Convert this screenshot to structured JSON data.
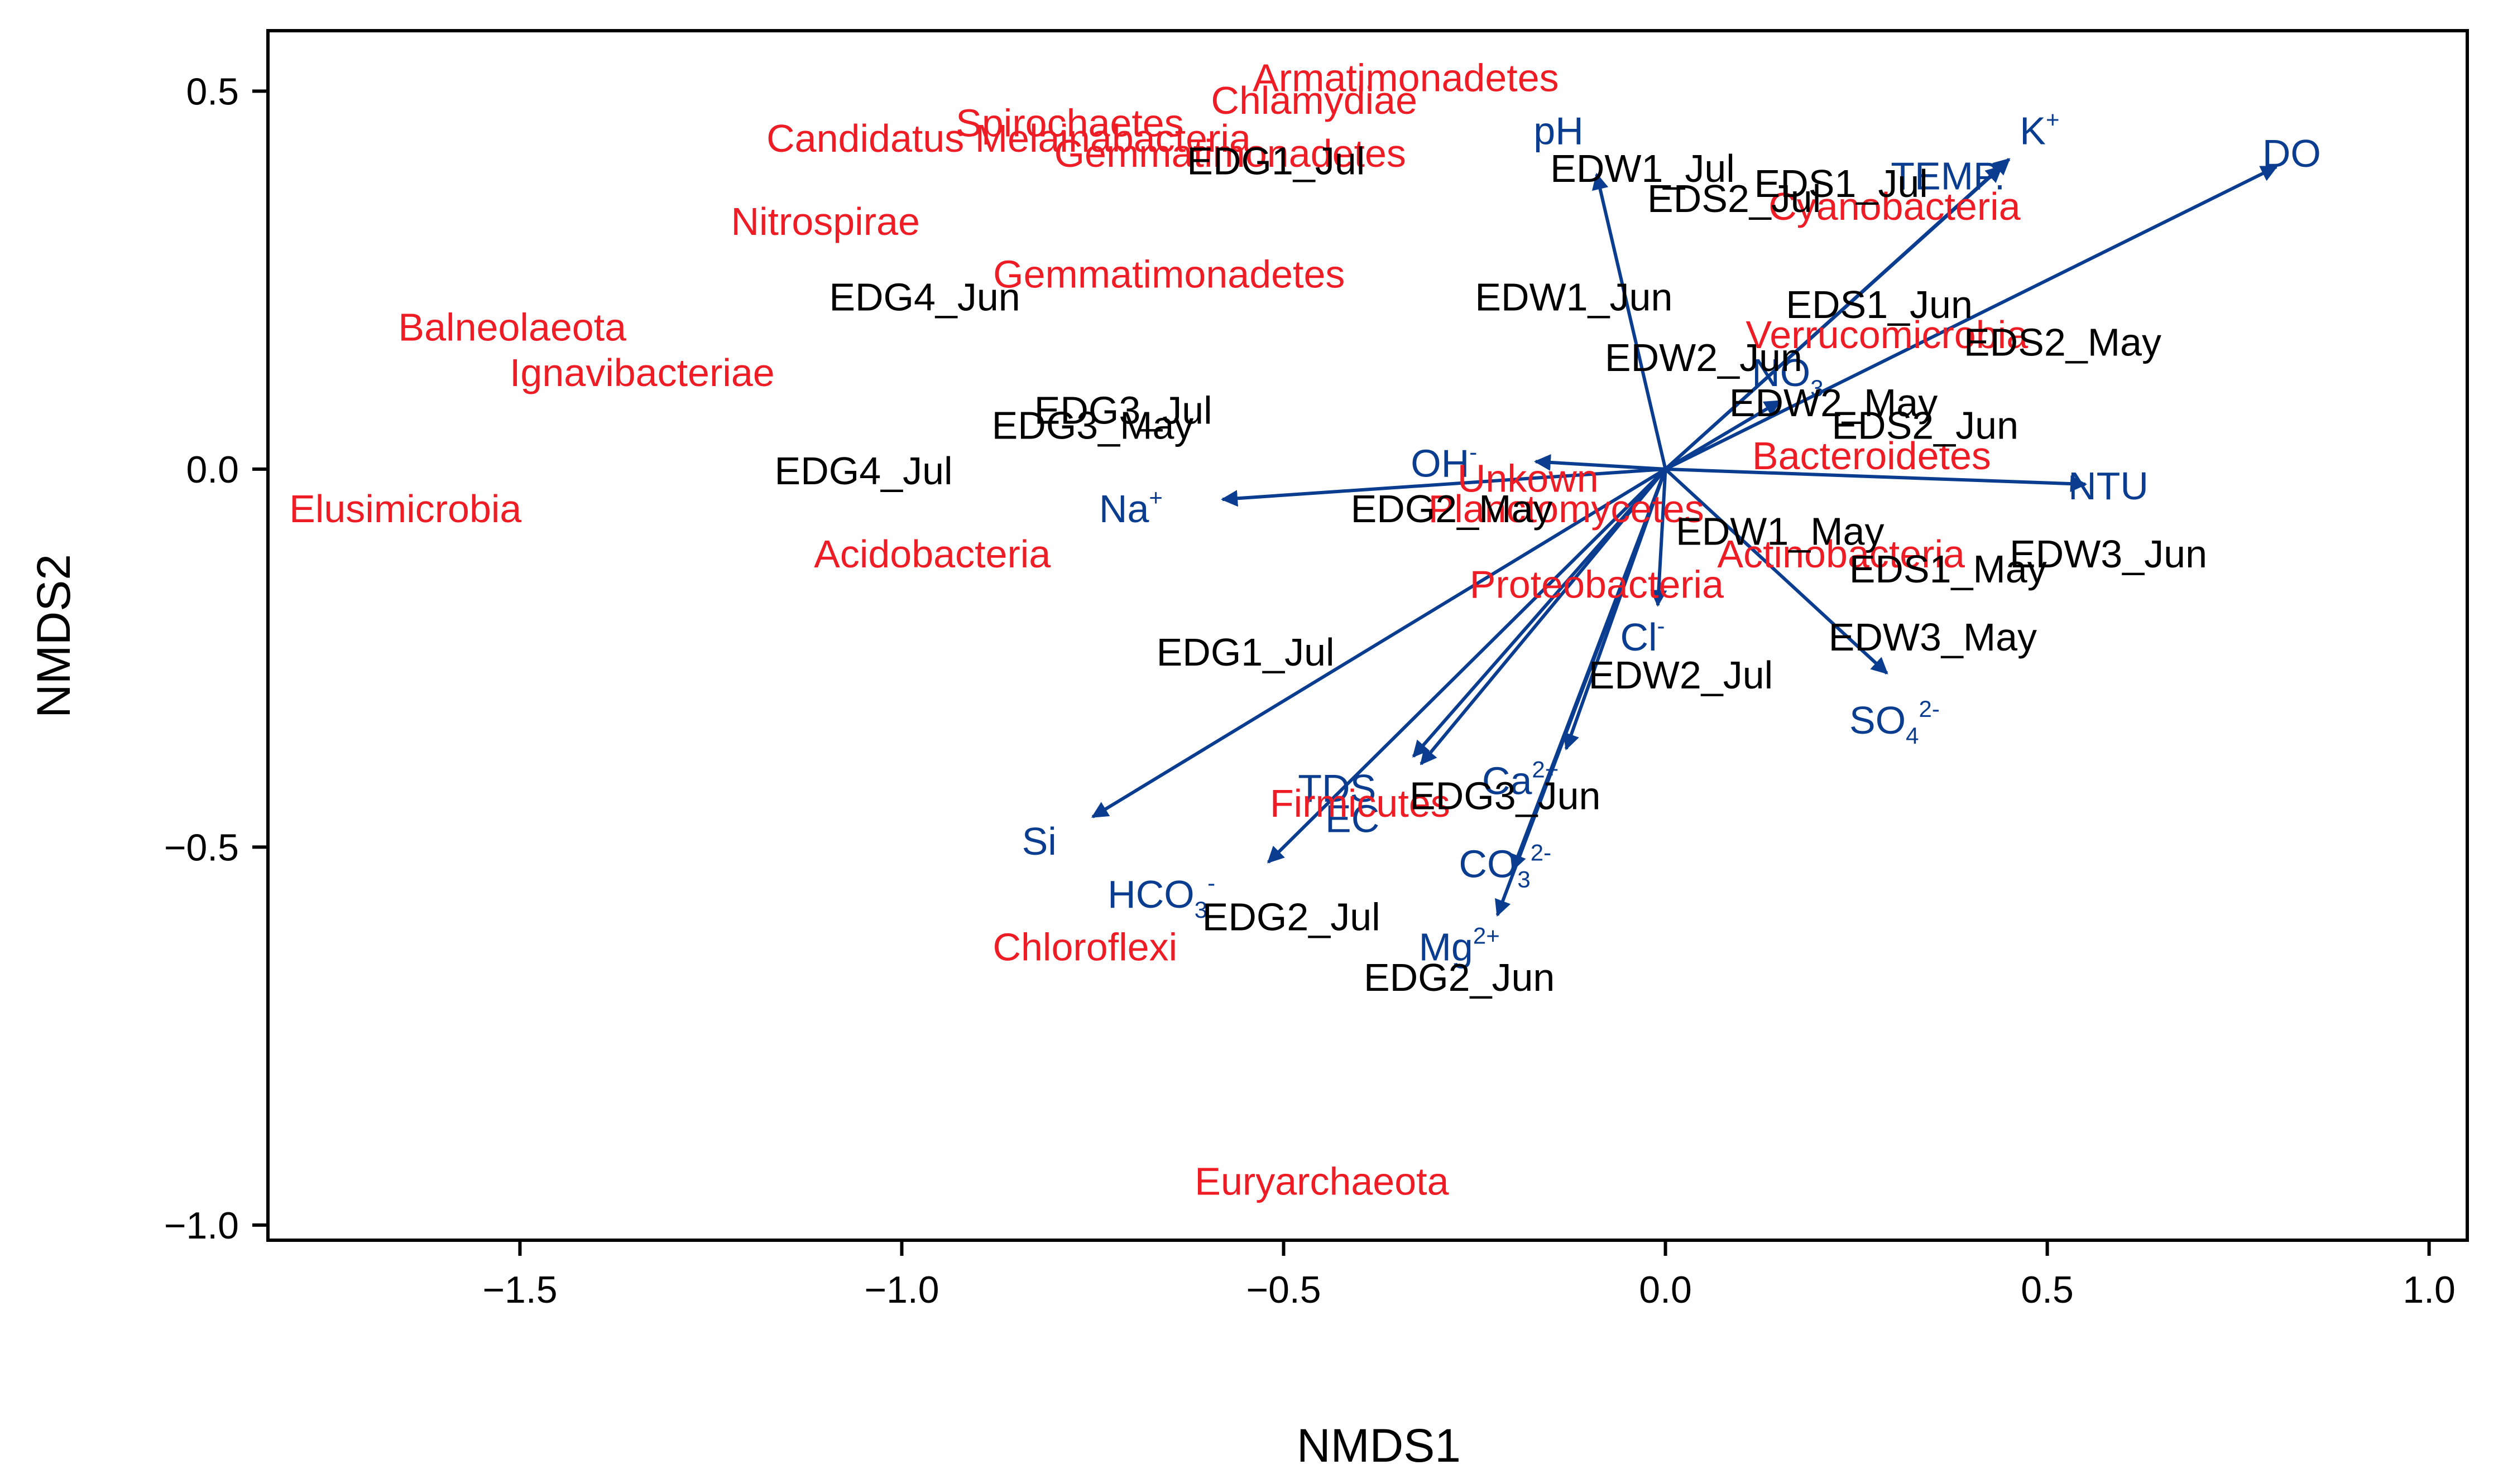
{
  "chart_data": {
    "type": "scatter",
    "title": "",
    "xlabel": "NMDS1",
    "ylabel": "NMDS2",
    "xlim": [
      -1.83,
      1.05
    ],
    "ylim": [
      -1.02,
      0.58
    ],
    "xticks": [
      -1.5,
      -1.0,
      -0.5,
      0.0,
      0.5,
      1.0
    ],
    "xtick_labels": [
      "−1.5",
      "−1.0",
      "−0.5",
      "0.0",
      "0.5",
      "1.0"
    ],
    "yticks": [
      -1.0,
      -0.5,
      0.0,
      0.5
    ],
    "ytick_labels": [
      "−1.0",
      "−0.5",
      "0.0",
      "0.5"
    ],
    "colors": {
      "sites": "#000000",
      "taxa": "#ee1c25",
      "vectors": "#0a3d8f"
    },
    "sites": [
      {
        "label": "EDG1_Jul",
        "x": -0.51,
        "y": 0.39
      },
      {
        "label": "EDW1_Jul",
        "x": -0.03,
        "y": 0.38
      },
      {
        "label": "EDS1_Jul",
        "x": 0.23,
        "y": 0.36
      },
      {
        "label": "EDS2_Jul",
        "x": 0.09,
        "y": 0.34
      },
      {
        "label": "EDG4_Jun",
        "x": -0.97,
        "y": 0.21
      },
      {
        "label": "EDW1_Jun",
        "x": -0.12,
        "y": 0.21
      },
      {
        "label": "EDS1_Jun",
        "x": 0.28,
        "y": 0.2
      },
      {
        "label": "EDS2_May",
        "x": 0.52,
        "y": 0.15
      },
      {
        "label": "EDW2_Jun",
        "x": 0.05,
        "y": 0.13
      },
      {
        "label": "EDW2_May",
        "x": 0.22,
        "y": 0.07
      },
      {
        "label": "EDG3_Jul",
        "x": -0.71,
        "y": 0.06
      },
      {
        "label": "EDG3_May",
        "x": -0.75,
        "y": 0.04
      },
      {
        "label": "EDS2_Jun",
        "x": 0.34,
        "y": 0.04
      },
      {
        "label": "EDG4_Jul",
        "x": -1.05,
        "y": -0.02
      },
      {
        "label": "EDG2_May",
        "x": -0.28,
        "y": -0.07
      },
      {
        "label": "EDW1_May",
        "x": 0.15,
        "y": -0.1
      },
      {
        "label": "EDW3_Jun",
        "x": 0.58,
        "y": -0.13
      },
      {
        "label": "EDS1_May",
        "x": 0.37,
        "y": -0.15
      },
      {
        "label": "EDW3_May",
        "x": 0.35,
        "y": -0.24
      },
      {
        "label": "EDG1_Jul",
        "x": -0.55,
        "y": -0.26
      },
      {
        "label": "EDW2_Jul",
        "x": 0.02,
        "y": -0.29
      },
      {
        "label": "EDG3_Jun",
        "x": -0.21,
        "y": -0.45
      },
      {
        "label": "EDG2_Jul",
        "x": -0.49,
        "y": -0.61
      },
      {
        "label": "EDG2_Jun",
        "x": -0.27,
        "y": -0.69
      }
    ],
    "taxa": [
      {
        "label": "Armatimonadetes",
        "x": -0.34,
        "y": 0.5
      },
      {
        "label": "Chlamydiae",
        "x": -0.46,
        "y": 0.47
      },
      {
        "label": "Spirochaetes",
        "x": -0.78,
        "y": 0.44
      },
      {
        "label": "Candidatus Melainabacteria",
        "x": -0.86,
        "y": 0.42
      },
      {
        "label": "Gemmatimonadetes",
        "x": -0.57,
        "y": 0.4
      },
      {
        "label": "Cyanobacteria",
        "x": 0.3,
        "y": 0.33
      },
      {
        "label": "Nitrospirae",
        "x": -1.1,
        "y": 0.31
      },
      {
        "label": "Gemmatimonadetes",
        "x": -0.65,
        "y": 0.24
      },
      {
        "label": "Balneolaeota",
        "x": -1.51,
        "y": 0.17
      },
      {
        "label": "Verrucomicrobia",
        "x": 0.29,
        "y": 0.16
      },
      {
        "label": "Ignavibacteriae",
        "x": -1.34,
        "y": 0.11
      },
      {
        "label": "Bacteroidetes",
        "x": 0.27,
        "y": 0.0
      },
      {
        "label": "Unkown",
        "x": -0.18,
        "y": -0.03
      },
      {
        "label": "Elusimicrobia",
        "x": -1.65,
        "y": -0.07
      },
      {
        "label": "Planctomycetes",
        "x": -0.13,
        "y": -0.07
      },
      {
        "label": "Actinobacteria",
        "x": 0.23,
        "y": -0.13
      },
      {
        "label": "Acidobacteria",
        "x": -0.96,
        "y": -0.13
      },
      {
        "label": "Proteobacteria",
        "x": -0.09,
        "y": -0.17
      },
      {
        "label": "Firmicutes",
        "x": -0.4,
        "y": -0.46
      },
      {
        "label": "Chloroflexi",
        "x": -0.76,
        "y": -0.65
      },
      {
        "label": "Euryarchaeota",
        "x": -0.45,
        "y": -0.96
      }
    ],
    "vectors": [
      {
        "label": "DO",
        "sup": "",
        "sub": "",
        "x": 0.8,
        "y": 0.4,
        "lx": 0.82,
        "ly": 0.4
      },
      {
        "label": "K",
        "sup": "+",
        "sub": "",
        "x": 0.45,
        "y": 0.41,
        "lx": 0.49,
        "ly": 0.43
      },
      {
        "label": "TEMP.",
        "sup": "",
        "sub": "",
        "x": 0.44,
        "y": 0.4,
        "lx": 0.37,
        "ly": 0.37
      },
      {
        "label": "pH",
        "sup": "",
        "sub": "",
        "x": -0.09,
        "y": 0.39,
        "lx": -0.14,
        "ly": 0.43
      },
      {
        "label": "NO",
        "sup": "",
        "sub": "3",
        "x": 0.15,
        "y": 0.09,
        "lx": 0.16,
        "ly": 0.11
      },
      {
        "label": "NTU",
        "sup": "",
        "sub": "",
        "x": 0.55,
        "y": -0.02,
        "lx": 0.58,
        "ly": -0.04
      },
      {
        "label": "OH",
        "sup": "-",
        "sub": "",
        "x": -0.17,
        "y": 0.01,
        "lx": -0.29,
        "ly": -0.01
      },
      {
        "label": "Na",
        "sup": "+",
        "sub": "",
        "x": -0.58,
        "y": -0.04,
        "lx": -0.7,
        "ly": -0.07
      },
      {
        "label": "Cl",
        "sup": "-",
        "sub": "",
        "x": -0.01,
        "y": -0.18,
        "lx": -0.03,
        "ly": -0.24
      },
      {
        "label": "SO",
        "sup": "2-",
        "sub": "4",
        "x": 0.29,
        "y": -0.27,
        "lx": 0.3,
        "ly": -0.35
      },
      {
        "label": "Ca",
        "sup": "2+",
        "sub": "",
        "x": -0.13,
        "y": -0.37,
        "lx": -0.19,
        "ly": -0.43
      },
      {
        "label": "TDS",
        "sup": "",
        "sub": "",
        "x": -0.33,
        "y": -0.38,
        "lx": -0.43,
        "ly": -0.44
      },
      {
        "label": "EC",
        "sup": "",
        "sub": "",
        "x": -0.32,
        "y": -0.39,
        "lx": -0.41,
        "ly": -0.48
      },
      {
        "label": "Si",
        "sup": "",
        "sub": "",
        "x": -0.75,
        "y": -0.46,
        "lx": -0.82,
        "ly": -0.51
      },
      {
        "label": "HCO",
        "sup": "-",
        "sub": "3",
        "x": -0.52,
        "y": -0.52,
        "lx": -0.66,
        "ly": -0.58
      },
      {
        "label": "CO",
        "sup": "2-",
        "sub": "3",
        "x": -0.2,
        "y": -0.53,
        "lx": -0.21,
        "ly": -0.54
      },
      {
        "label": "Mg",
        "sup": "2+",
        "sub": "",
        "x": -0.22,
        "y": -0.59,
        "lx": -0.27,
        "ly": -0.65
      }
    ]
  }
}
